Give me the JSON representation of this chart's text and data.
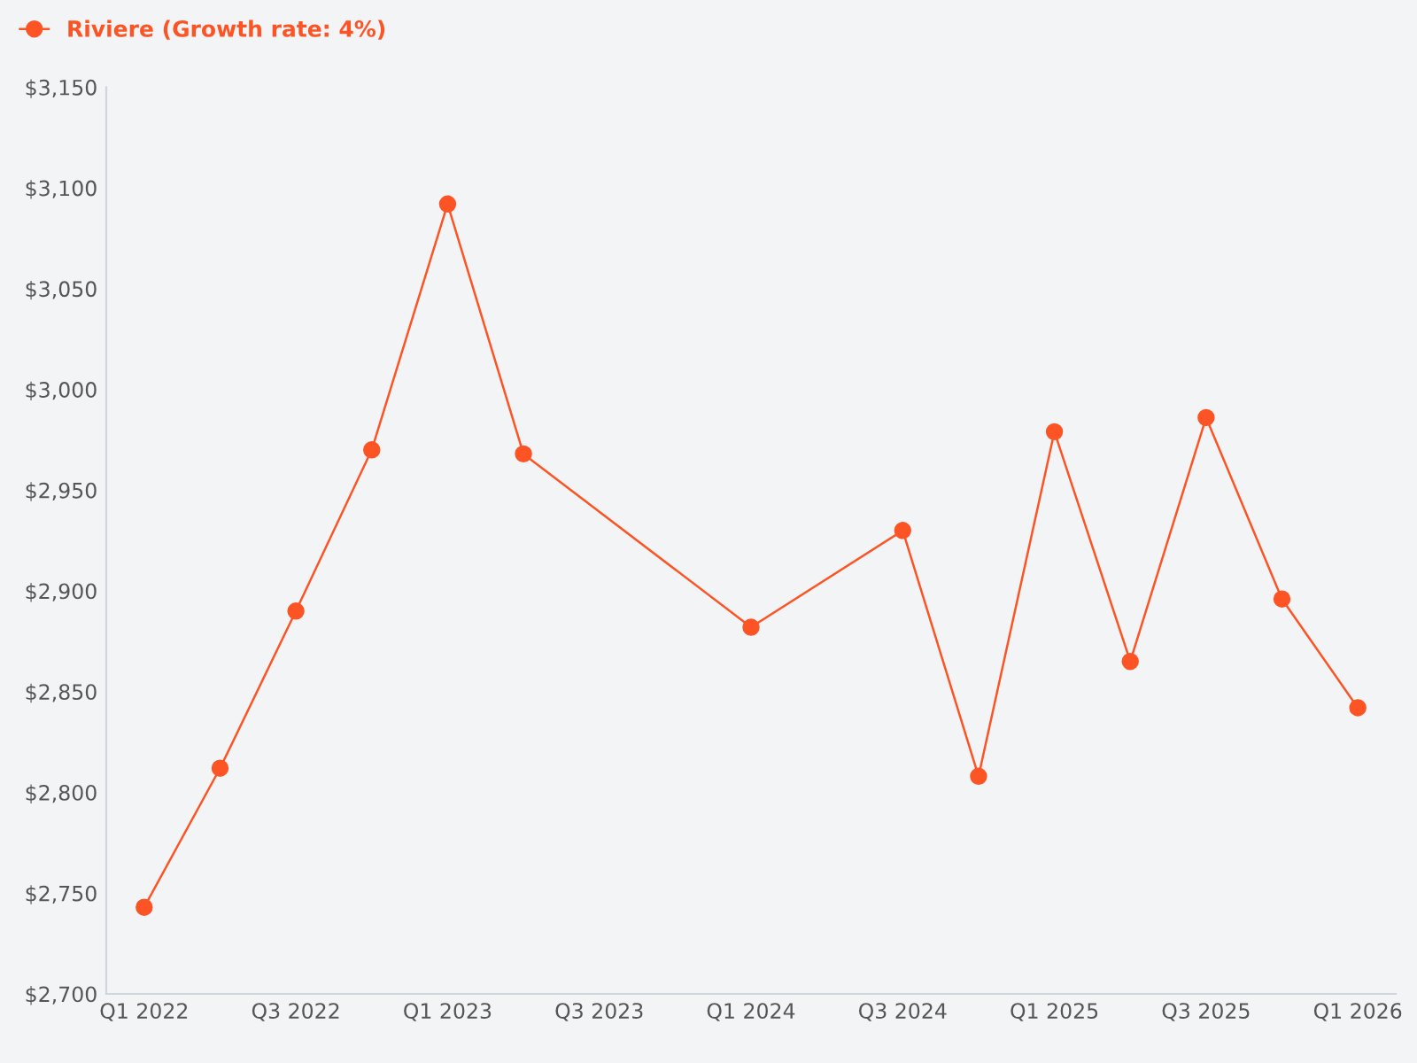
{
  "chart_data": {
    "type": "line",
    "categories": [
      "Q1 2022",
      null,
      "Q3 2022",
      null,
      "Q1 2023",
      null,
      "Q3 2023",
      null,
      "Q1 2024",
      null,
      "Q3 2024",
      null,
      "Q1 2025",
      null,
      "Q3 2025",
      null,
      "Q1 2026"
    ],
    "series": [
      {
        "name": "Riviere (Growth rate: 4%)",
        "color": "#fc5424",
        "values": [
          2743,
          2812,
          2890,
          2970,
          3092,
          2968,
          null,
          null,
          2882,
          null,
          2930,
          2808,
          2979,
          2865,
          2986,
          2896,
          2842
        ]
      }
    ],
    "ylim": [
      2700,
      3150
    ],
    "yticks": [
      {
        "value": 2700,
        "label": "$2,700"
      },
      {
        "value": 2750,
        "label": "$2,750"
      },
      {
        "value": 2800,
        "label": "$2,800"
      },
      {
        "value": 2850,
        "label": "$2,850"
      },
      {
        "value": 2900,
        "label": "$2,900"
      },
      {
        "value": 2950,
        "label": "$2,950"
      },
      {
        "value": 3000,
        "label": "$3,000"
      },
      {
        "value": 3050,
        "label": "$3,050"
      },
      {
        "value": 3100,
        "label": "$3,100"
      },
      {
        "value": 3150,
        "label": "$3,150"
      }
    ],
    "grid": false,
    "legend": "top left",
    "marker": "circle",
    "line_style": "solid"
  }
}
